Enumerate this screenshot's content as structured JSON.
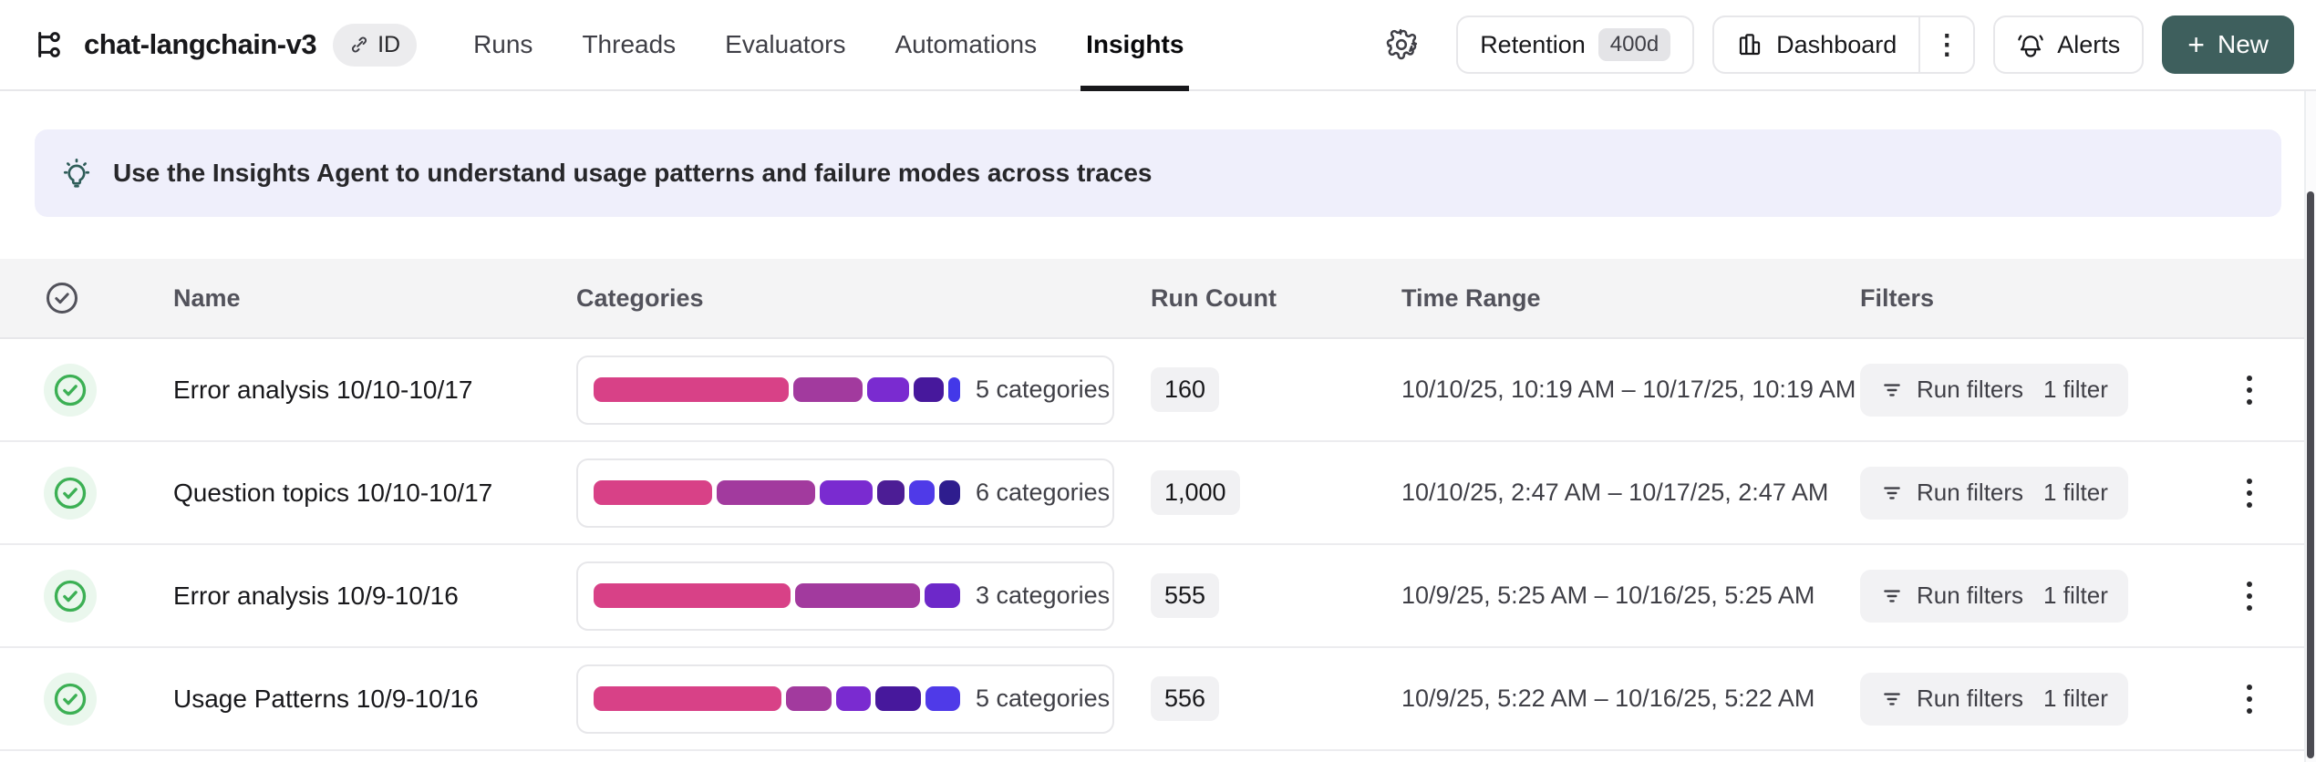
{
  "header": {
    "title": "chat-langchain-v3",
    "id_badge_label": "ID",
    "tabs": [
      {
        "label": "Runs",
        "active": false
      },
      {
        "label": "Threads",
        "active": false
      },
      {
        "label": "Evaluators",
        "active": false
      },
      {
        "label": "Automations",
        "active": false
      },
      {
        "label": "Insights",
        "active": true
      }
    ],
    "actions": {
      "retention_label": "Retention",
      "retention_value": "400d",
      "dashboard_label": "Dashboard",
      "alerts_label": "Alerts",
      "new_plus": "+",
      "new_label": "New"
    }
  },
  "banner": {
    "message": "Use the Insights Agent to understand usage patterns and failure modes across traces"
  },
  "table": {
    "columns": {
      "name": "Name",
      "categories": "Categories",
      "run_count": "Run Count",
      "time_range": "Time Range",
      "filters": "Filters"
    },
    "rows": [
      {
        "name": "Error analysis 10/10-10/17",
        "categories_label": "5 categories",
        "run_count": "160",
        "time_range": "10/10/25, 10:19 AM – 10/17/25, 10:19 AM",
        "filter_label": "Run filters",
        "filter_count": "1 filter",
        "segments": [
          {
            "color": "#d84187",
            "pct": 56
          },
          {
            "color": "#a23a9e",
            "pct": 20
          },
          {
            "color": "#7a2bd0",
            "pct": 12
          },
          {
            "color": "#47189c",
            "pct": 8.5
          },
          {
            "color": "#4338e8",
            "pct": 3.5
          }
        ]
      },
      {
        "name": "Question topics 10/10-10/17",
        "categories_label": "6 categories",
        "run_count": "1,000",
        "time_range": "10/10/25, 2:47 AM – 10/17/25, 2:47 AM",
        "filter_label": "Run filters",
        "filter_count": "1 filter",
        "segments": [
          {
            "color": "#d84187",
            "pct": 34.6
          },
          {
            "color": "#a23a9e",
            "pct": 28.4
          },
          {
            "color": "#7a2bd0",
            "pct": 15.5
          },
          {
            "color": "#4c1d95",
            "pct": 8
          },
          {
            "color": "#4f3ae8",
            "pct": 7.4
          },
          {
            "color": "#2e1d8e",
            "pct": 6.1
          }
        ]
      },
      {
        "name": "Error analysis 10/9-10/16",
        "categories_label": "3 categories",
        "run_count": "555",
        "time_range": "10/9/25, 5:25 AM – 10/16/25, 5:25 AM",
        "filter_label": "Run filters",
        "filter_count": "1 filter",
        "segments": [
          {
            "color": "#d84187",
            "pct": 55
          },
          {
            "color": "#a23a9e",
            "pct": 35
          },
          {
            "color": "#6d28c9",
            "pct": 10
          }
        ]
      },
      {
        "name": "Usage Patterns 10/9-10/16",
        "categories_label": "5 categories",
        "run_count": "556",
        "time_range": "10/9/25, 5:22 AM – 10/16/25, 5:22 AM",
        "filter_label": "Run filters",
        "filter_count": "1 filter",
        "segments": [
          {
            "color": "#d84187",
            "pct": 54
          },
          {
            "color": "#a23a9e",
            "pct": 13
          },
          {
            "color": "#7a2bd0",
            "pct": 10
          },
          {
            "color": "#47189c",
            "pct": 13
          },
          {
            "color": "#4f3ae8",
            "pct": 10
          }
        ]
      }
    ]
  },
  "colors": {
    "accent_teal": "#3e5f5d",
    "success_green": "#3cb054",
    "banner_bg": "#efeffb",
    "table_header_bg": "#f4f4f5",
    "border": "#e7e7ea"
  }
}
